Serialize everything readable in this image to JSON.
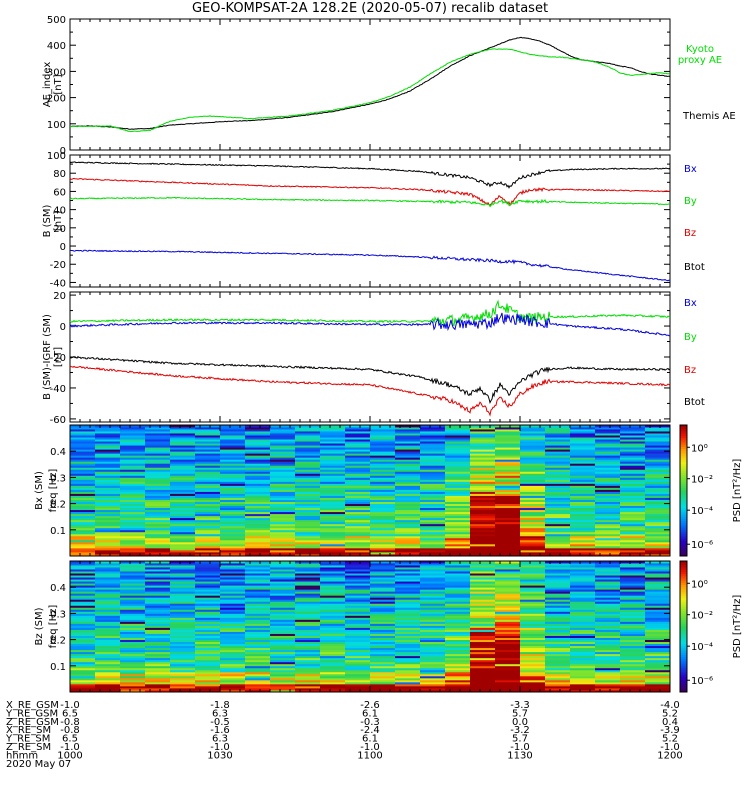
{
  "title": "GEO-KOMPSAT-2A 128.2E (2020-05-07) recalib dataset",
  "colors": {
    "black": "#000000",
    "red": "#e00000",
    "green": "#00dd00",
    "blue": "#0000dd"
  },
  "chart_data": [
    {
      "type": "line",
      "panel": "ae_index",
      "ylabel": "AE_index [nT]",
      "ylim": [
        0,
        500
      ],
      "yticks": [
        "0",
        "100",
        "200",
        "300",
        "400",
        "500"
      ],
      "xlim": [
        0,
        120
      ],
      "legend": [
        {
          "name": "Kyoto proxy AE",
          "color": "#00dd00"
        },
        {
          "name": "Themis AE",
          "color": "#000000"
        }
      ],
      "series": [
        {
          "name": "Themis AE",
          "color": "#000000",
          "x": [
            0,
            4,
            8,
            12,
            16,
            20,
            24,
            28,
            32,
            36,
            40,
            44,
            48,
            52,
            56,
            60,
            64,
            68,
            72,
            76,
            80,
            84,
            88,
            90,
            92,
            94,
            96,
            98,
            100,
            102,
            104,
            106,
            108,
            110,
            112,
            114,
            116,
            118,
            120
          ],
          "y": [
            90,
            92,
            88,
            80,
            82,
            95,
            100,
            105,
            110,
            112,
            118,
            125,
            135,
            145,
            160,
            175,
            195,
            225,
            270,
            320,
            360,
            390,
            420,
            430,
            425,
            415,
            400,
            380,
            360,
            345,
            340,
            335,
            330,
            320,
            315,
            300,
            290,
            285,
            280
          ]
        },
        {
          "name": "Kyoto proxy AE",
          "color": "#00dd00",
          "x": [
            0,
            4,
            8,
            12,
            16,
            20,
            24,
            28,
            32,
            36,
            40,
            44,
            48,
            52,
            56,
            60,
            64,
            68,
            72,
            76,
            80,
            84,
            88,
            90,
            92,
            94,
            96,
            98,
            100,
            102,
            104,
            106,
            108,
            110,
            112,
            114,
            116,
            118,
            120
          ],
          "y": [
            90,
            90,
            92,
            70,
            75,
            110,
            125,
            130,
            125,
            120,
            125,
            130,
            140,
            150,
            165,
            180,
            205,
            240,
            290,
            335,
            365,
            385,
            385,
            375,
            365,
            360,
            355,
            355,
            350,
            345,
            340,
            330,
            315,
            295,
            285,
            288,
            292,
            295,
            290
          ]
        }
      ]
    },
    {
      "type": "line",
      "panel": "b_sm",
      "ylabel": "B (SM) [nT]",
      "ylim": [
        -45,
        100
      ],
      "yticks": [
        "-40",
        "-20",
        "0",
        "20",
        "40",
        "60",
        "80",
        "100"
      ],
      "xlim": [
        0,
        120
      ],
      "legend": [
        {
          "name": "Bx",
          "color": "#0000dd"
        },
        {
          "name": "By",
          "color": "#00dd00"
        },
        {
          "name": "Bz",
          "color": "#e00000"
        },
        {
          "name": "Btot",
          "color": "#000000"
        }
      ],
      "series": [
        {
          "name": "Btot",
          "color": "#000000",
          "x": [
            0,
            20,
            40,
            60,
            70,
            80,
            84,
            86,
            88,
            90,
            92,
            95,
            100,
            110,
            120
          ],
          "y": [
            92,
            90,
            88,
            85,
            82,
            75,
            67,
            70,
            65,
            75,
            78,
            82,
            84,
            85,
            85
          ]
        },
        {
          "name": "Bz",
          "color": "#e00000",
          "x": [
            0,
            20,
            40,
            60,
            70,
            80,
            84,
            86,
            88,
            90,
            92,
            95,
            100,
            110,
            120
          ],
          "y": [
            74,
            70,
            66,
            64,
            62,
            57,
            45,
            55,
            46,
            58,
            62,
            62,
            62,
            61,
            60
          ]
        },
        {
          "name": "By",
          "color": "#00dd00",
          "x": [
            0,
            20,
            40,
            60,
            70,
            80,
            84,
            86,
            88,
            90,
            92,
            95,
            100,
            110,
            120
          ],
          "y": [
            52,
            53,
            51,
            50,
            49,
            48,
            45,
            50,
            46,
            50,
            49,
            49,
            48,
            47,
            46
          ]
        },
        {
          "name": "Bx",
          "color": "#0000dd",
          "x": [
            0,
            20,
            40,
            60,
            70,
            80,
            84,
            86,
            88,
            90,
            92,
            95,
            100,
            110,
            120
          ],
          "y": [
            -5,
            -6,
            -8,
            -10,
            -12,
            -15,
            -16,
            -17,
            -17,
            -18,
            -20,
            -22,
            -26,
            -32,
            -38
          ]
        }
      ]
    },
    {
      "type": "line",
      "panel": "b_minus_igrf",
      "ylabel": "B (SM)-IGRF (SM) [nT]",
      "ylim": [
        -62,
        22
      ],
      "yticks": [
        "-60",
        "-40",
        "-20",
        "0",
        "20"
      ],
      "xlim": [
        0,
        120
      ],
      "legend": [
        {
          "name": "Bx",
          "color": "#0000dd"
        },
        {
          "name": "By",
          "color": "#00dd00"
        },
        {
          "name": "Bz",
          "color": "#e00000"
        },
        {
          "name": "Btot",
          "color": "#000000"
        }
      ],
      "series": [
        {
          "name": "By",
          "color": "#00dd00",
          "x": [
            0,
            20,
            40,
            60,
            70,
            78,
            84,
            86,
            88,
            90,
            92,
            95,
            100,
            110,
            120
          ],
          "y": [
            3,
            4,
            4,
            3,
            3,
            4,
            8,
            14,
            10,
            6,
            5,
            6,
            6,
            7,
            6
          ]
        },
        {
          "name": "Bx",
          "color": "#0000dd",
          "x": [
            0,
            20,
            40,
            60,
            70,
            78,
            84,
            86,
            88,
            90,
            92,
            95,
            100,
            110,
            120
          ],
          "y": [
            0,
            2,
            2,
            1,
            1,
            1,
            2,
            6,
            4,
            5,
            3,
            2,
            0,
            -2,
            -6
          ]
        },
        {
          "name": "Btot",
          "color": "#000000",
          "x": [
            0,
            20,
            40,
            60,
            70,
            76,
            80,
            82,
            84,
            86,
            88,
            90,
            92,
            95,
            100,
            110,
            120
          ],
          "y": [
            -20,
            -24,
            -26,
            -28,
            -33,
            -38,
            -44,
            -40,
            -48,
            -38,
            -44,
            -36,
            -32,
            -28,
            -27,
            -28,
            -28
          ]
        },
        {
          "name": "Bz",
          "color": "#e00000",
          "x": [
            0,
            20,
            40,
            60,
            70,
            76,
            80,
            82,
            84,
            86,
            88,
            90,
            92,
            95,
            100,
            110,
            120
          ],
          "y": [
            -26,
            -32,
            -36,
            -38,
            -44,
            -48,
            -55,
            -50,
            -56,
            -47,
            -52,
            -44,
            -40,
            -36,
            -36,
            -37,
            -38
          ]
        }
      ]
    },
    {
      "type": "heatmap",
      "panel": "bx_spectrogram",
      "ylabel": "Bx (SM) freq [Hz]",
      "ylim": [
        0,
        0.5
      ],
      "yticks": [
        "0.1",
        "0.2",
        "0.3",
        "0.4"
      ],
      "colorbar_label": "PSD [nT²/Hz]",
      "colorbar_ticks": [
        "10⁰",
        "10⁻²",
        "10⁻⁴",
        "10⁻⁶"
      ]
    },
    {
      "type": "heatmap",
      "panel": "bz_spectrogram",
      "ylabel": "Bz (SM) freq [Hz]",
      "ylim": [
        0,
        0.5
      ],
      "yticks": [
        "0.1",
        "0.2",
        "0.3",
        "0.4"
      ],
      "colorbar_label": "PSD [nT²/Hz]",
      "colorbar_ticks": [
        "10⁰",
        "10⁻²",
        "10⁻⁴",
        "10⁻⁶"
      ]
    }
  ],
  "ephemeris": {
    "labels": [
      "X_RE_GSM",
      "Y_RE_GSM",
      "Z_RE_GSM",
      "X_RE_SM",
      "Y_RE_SM",
      "Z_RE_SM",
      "hhmm",
      "2020 May 07"
    ],
    "columns": [
      [
        "-1.0",
        "6.5",
        "-0.8",
        "-0.8",
        "6.5",
        "-1.0",
        "1000"
      ],
      [
        "-1.8",
        "6.3",
        "-0.5",
        "-1.6",
        "6.3",
        "-1.0",
        "1030"
      ],
      [
        "-2.6",
        "6.1",
        "-0.3",
        "-2.4",
        "6.1",
        "-1.0",
        "1100"
      ],
      [
        "-3.3",
        "5.7",
        "0.0",
        "-3.2",
        "5.7",
        "-1.0",
        "1130"
      ],
      [
        "-4.0",
        "5.2",
        "0.4",
        "-3.9",
        "5.2",
        "-1.0",
        "1200"
      ]
    ]
  }
}
